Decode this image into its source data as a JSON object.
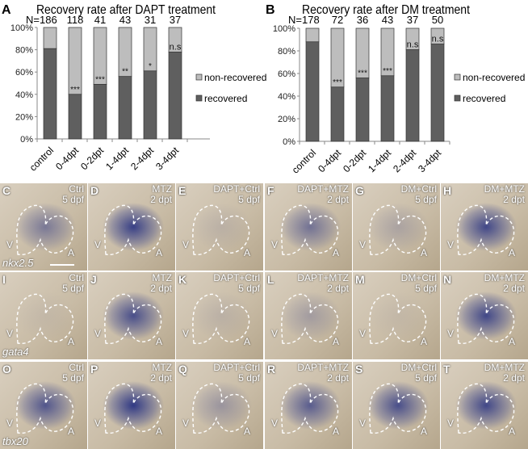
{
  "chart_data": [
    {
      "panel_letter": "A",
      "type": "bar",
      "stacked": true,
      "title": "Recovery rate after DAPT treatment",
      "n_prefix": "N=",
      "n_values": [
        "186",
        "118",
        "41",
        "43",
        "31",
        "37"
      ],
      "categories": [
        "control",
        "0-4dpt",
        "0-2dpt",
        "1-4dpt",
        "2-4dpt",
        "3-4dpt"
      ],
      "series": [
        {
          "name": "recovered",
          "color": "#5f5f5f",
          "values": [
            81,
            40,
            49,
            56,
            61,
            78
          ]
        },
        {
          "name": "non-recovered",
          "color": "#bdbdbd",
          "values": [
            19,
            60,
            51,
            44,
            39,
            22
          ]
        }
      ],
      "significance": [
        "",
        "***",
        "***",
        "**",
        "*",
        "n.s"
      ],
      "yticks": [
        "0%",
        "20%",
        "40%",
        "60%",
        "80%",
        "100%"
      ],
      "ylim": [
        0,
        100
      ],
      "legend": "right"
    },
    {
      "panel_letter": "B",
      "type": "bar",
      "stacked": true,
      "title": "Recovery rate after DM treatment",
      "n_prefix": "N=",
      "n_values": [
        "178",
        "72",
        "36",
        "43",
        "37",
        "50"
      ],
      "categories": [
        "control",
        "0-4dpt",
        "0-2dpt",
        "1-4dpt",
        "2-4dpt",
        "3-4dpt"
      ],
      "series": [
        {
          "name": "recovered",
          "color": "#5f5f5f",
          "values": [
            88,
            48,
            56,
            58,
            81,
            86
          ]
        },
        {
          "name": "non-recovered",
          "color": "#bdbdbd",
          "values": [
            12,
            52,
            44,
            42,
            19,
            14
          ]
        }
      ],
      "significance": [
        "",
        "***",
        "***",
        "***",
        "n.s",
        "n.s"
      ],
      "yticks": [
        "0%",
        "20%",
        "40%",
        "60%",
        "80%",
        "100%"
      ],
      "ylim": [
        0,
        100
      ],
      "legend": "right"
    }
  ],
  "images": {
    "genes": [
      "nkx2.5",
      "gata4",
      "tbx20"
    ],
    "ventricle_label": "V",
    "atrium_label": "A",
    "panels": [
      {
        "letter": "C",
        "caption": "Ctrl\n5 dpf",
        "stain": 0.5
      },
      {
        "letter": "D",
        "caption": "MTZ\n2 dpt",
        "stain": 0.9
      },
      {
        "letter": "E",
        "caption": "DAPT+Ctrl\n5 dpf",
        "stain": 0.1
      },
      {
        "letter": "F",
        "caption": "DAPT+MTZ\n2 dpt",
        "stain": 0.55
      },
      {
        "letter": "G",
        "caption": "DM+Ctrl\n5 dpf",
        "stain": 0.2
      },
      {
        "letter": "H",
        "caption": "DM+MTZ\n2 dpt",
        "stain": 0.85
      },
      {
        "letter": "I",
        "caption": "Ctrl\n5 dpf",
        "stain": 0.05
      },
      {
        "letter": "J",
        "caption": "MTZ\n2 dpt",
        "stain": 0.8
      },
      {
        "letter": "K",
        "caption": "DAPT+Ctrl\n5 dpf",
        "stain": 0.1
      },
      {
        "letter": "L",
        "caption": "DAPT+MTZ\n2 dpt",
        "stain": 0.25
      },
      {
        "letter": "M",
        "caption": "DM+Ctrl\n5 dpf",
        "stain": 0.05
      },
      {
        "letter": "N",
        "caption": "DM+MTZ\n2 dpt",
        "stain": 0.85
      },
      {
        "letter": "O",
        "caption": "Ctrl\n5 dpf",
        "stain": 0.75
      },
      {
        "letter": "P",
        "caption": "MTZ\n2 dpt",
        "stain": 0.95
      },
      {
        "letter": "Q",
        "caption": "DAPT+Ctrl\n5 dpf",
        "stain": 0.3
      },
      {
        "letter": "R",
        "caption": "DAPT+MTZ\n2 dpt",
        "stain": 0.7
      },
      {
        "letter": "S",
        "caption": "DM+Ctrl\n5 dpf",
        "stain": 0.8
      },
      {
        "letter": "T",
        "caption": "DM+MTZ\n2 dpt",
        "stain": 0.85
      }
    ]
  }
}
